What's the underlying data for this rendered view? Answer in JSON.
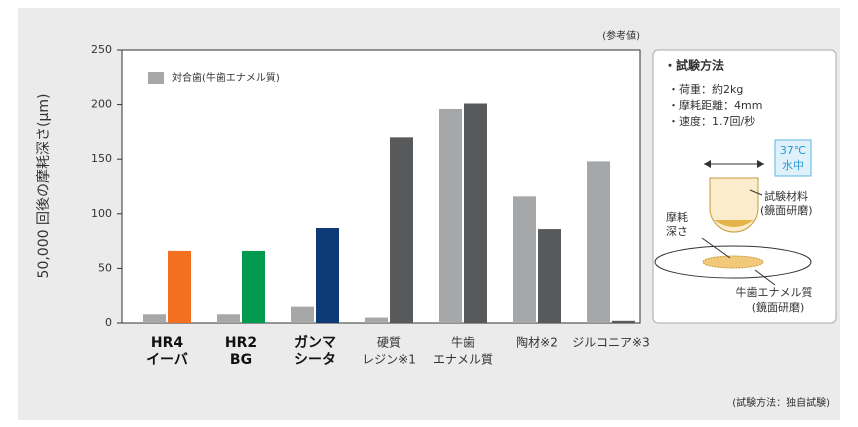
{
  "chart_data": {
    "type": "bar",
    "ylabel": "50,000 回後の摩耗深さ(μm)",
    "note": "(参考値)",
    "footnote": "(試験方法：独自試験)",
    "categories": [
      [
        "HR4",
        "イーバ"
      ],
      [
        "HR2",
        "BG"
      ],
      [
        "ガンマ",
        "シータ"
      ],
      [
        "硬質",
        "レジン※1"
      ],
      [
        "牛歯",
        "エナメル質"
      ],
      [
        "陶材※2"
      ],
      [
        "ジルコニア※3"
      ]
    ],
    "series": [
      {
        "name": "対合歯(牛歯エナメル質)",
        "color": "#a6a7a9",
        "values": [
          8,
          8,
          15,
          5,
          196,
          116,
          148
        ]
      },
      {
        "colors": [
          "#f37021",
          "#009a4e",
          "#0f3a78",
          "#58595b",
          "#58595b",
          "#58595b",
          "#58595b"
        ],
        "values": [
          66,
          66,
          87,
          170,
          201,
          86,
          2
        ]
      }
    ],
    "ylim": [
      0,
      250
    ],
    "yticks": [
      0,
      50,
      100,
      150,
      200,
      250
    ]
  },
  "panel": {
    "title": "・試験方法",
    "lines": [
      "・荷重：約2kg",
      "・摩耗距離：4mm",
      "・速度：1.7回/秒"
    ],
    "badge": [
      "37℃",
      "水中"
    ],
    "material": [
      "試験材料",
      "(鏡面研磨)"
    ],
    "depth": [
      "摩耗",
      "深さ"
    ],
    "enamel": [
      "牛歯エナメル質",
      "(鏡面研磨)"
    ]
  }
}
